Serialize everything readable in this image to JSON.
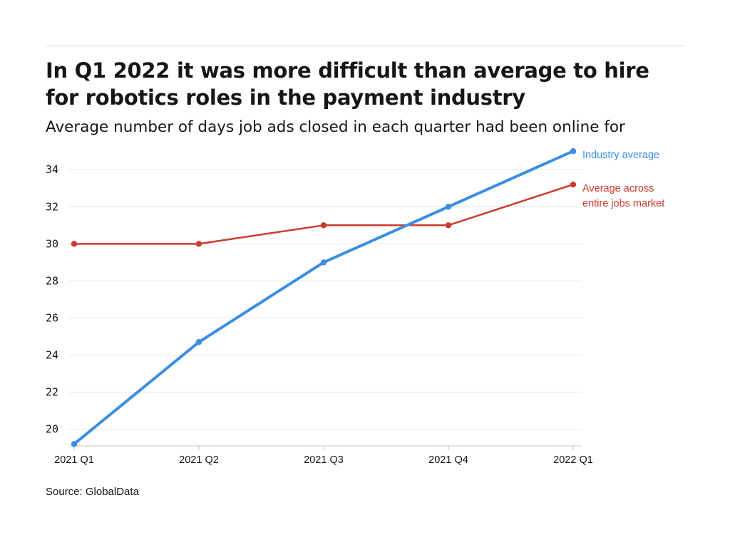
{
  "title": "In Q1 2022 it was more difficult than average to hire for robotics roles in the payment industry",
  "subtitle": "Average number of days job ads closed in each quarter had been online for",
  "source": "Source: GlobalData",
  "chart_data": {
    "type": "line",
    "x": [
      "2021 Q1",
      "2021 Q2",
      "2021 Q3",
      "2021 Q4",
      "2022 Q1"
    ],
    "yticks": [
      20,
      22,
      24,
      26,
      28,
      30,
      32,
      34
    ],
    "ylim": [
      19.1,
      35.2
    ],
    "grid": true,
    "legend": "direct labels at line ends",
    "series": [
      {
        "name": "Industry average",
        "color": "#3b8ee0",
        "values": [
          19.2,
          24.7,
          29.0,
          32.0,
          35.0
        ]
      },
      {
        "name": "Average across entire jobs market",
        "label_lines": [
          "Average across",
          "entire jobs market"
        ],
        "color": "#cc3b2f",
        "values": [
          30.0,
          30.0,
          31.0,
          31.0,
          33.2
        ]
      }
    ]
  }
}
